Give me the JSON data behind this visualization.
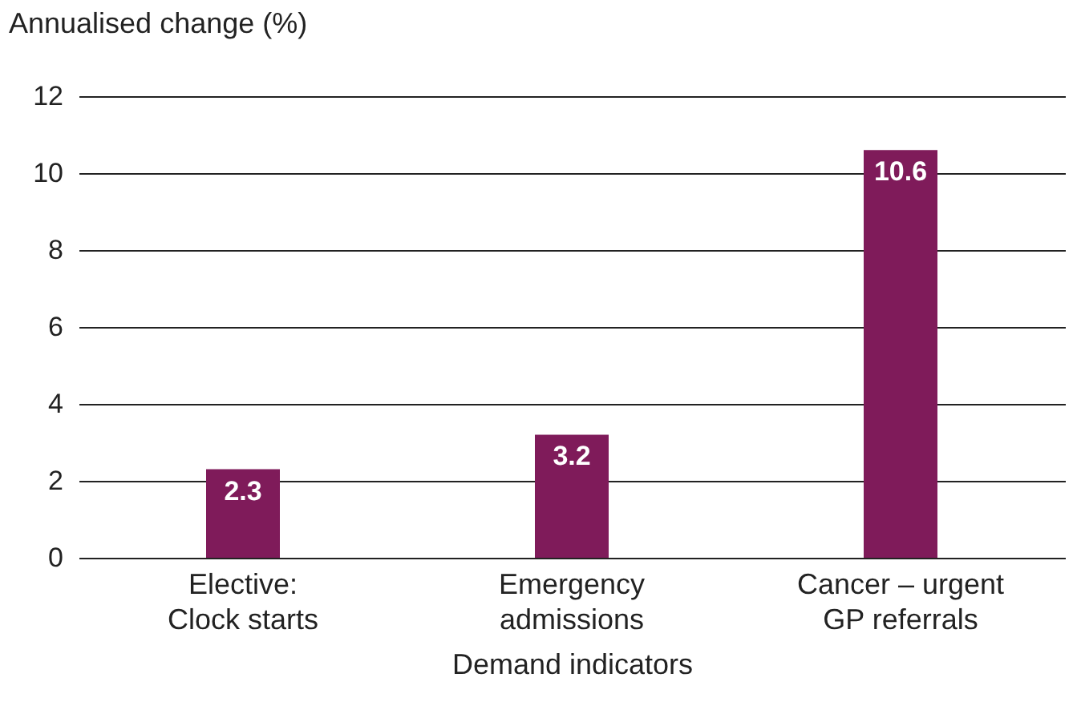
{
  "chart_data": {
    "type": "bar",
    "ylabel": "Annualised change (%)",
    "xlabel": "Demand indicators",
    "categories": [
      "Elective:\nClock starts",
      "Emergency\nadmissions",
      "Cancer – urgent\nGP referrals"
    ],
    "values": [
      2.3,
      3.2,
      10.6
    ],
    "color": "#7f1b5a",
    "ylim": [
      0,
      12
    ],
    "yticks": [
      0,
      2,
      4,
      6,
      8,
      10,
      12
    ],
    "grid": "y",
    "data_labels": true
  }
}
